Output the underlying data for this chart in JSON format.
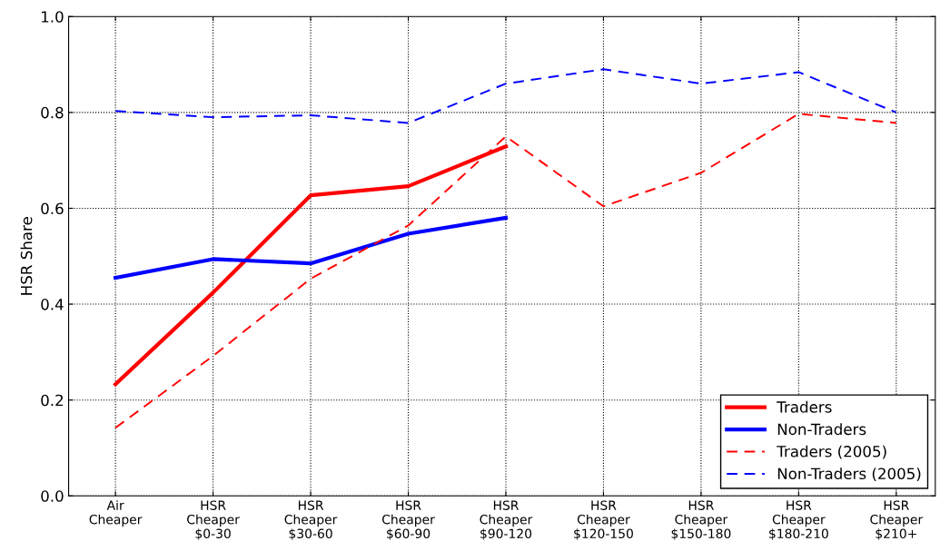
{
  "chart_data": {
    "type": "line",
    "ylabel": "HSR Share",
    "categories": [
      "Air\nCheaper",
      "HSR\nCheaper\n$0-30",
      "HSR\nCheaper\n$30-60",
      "HSR\nCheaper\n$60-90",
      "HSR\nCheaper\n$90-120",
      "HSR\nCheaper\n$120-150",
      "HSR\nCheaper\n$150-180",
      "HSR\nCheaper\n$180-210",
      "HSR\nCheaper\n$210+"
    ],
    "series": [
      {
        "name": "Traders",
        "color": "#ff0000",
        "line_style": "solid",
        "values": [
          0.233,
          0.424,
          0.627,
          0.646,
          0.729,
          null,
          null,
          null,
          null
        ]
      },
      {
        "name": "Non-Traders",
        "color": "#0000ff",
        "line_style": "solid",
        "values": [
          0.455,
          0.494,
          0.485,
          0.547,
          0.58,
          null,
          null,
          null,
          null
        ]
      },
      {
        "name": "Traders (2005)",
        "color": "#ff0000",
        "line_style": "dashed",
        "values": [
          0.142,
          0.292,
          0.453,
          0.564,
          0.75,
          0.604,
          0.674,
          0.797,
          0.778
        ]
      },
      {
        "name": "Non-Traders (2005)",
        "color": "#0000ff",
        "line_style": "dashed",
        "values": [
          0.803,
          0.79,
          0.794,
          0.778,
          0.86,
          0.89,
          0.86,
          0.884,
          0.8
        ]
      }
    ],
    "ylim": [
      0.0,
      1.0
    ],
    "yticks": [
      {
        "value": 0.0,
        "label": "0.0"
      },
      {
        "value": 0.2,
        "label": "0.2"
      },
      {
        "value": 0.4,
        "label": "0.4"
      },
      {
        "value": 0.6,
        "label": "0.6"
      },
      {
        "value": 0.8,
        "label": "0.8"
      },
      {
        "value": 1.0,
        "label": "1.0"
      }
    ],
    "grid": true,
    "legend": "bottom right",
    "marker": "none"
  }
}
